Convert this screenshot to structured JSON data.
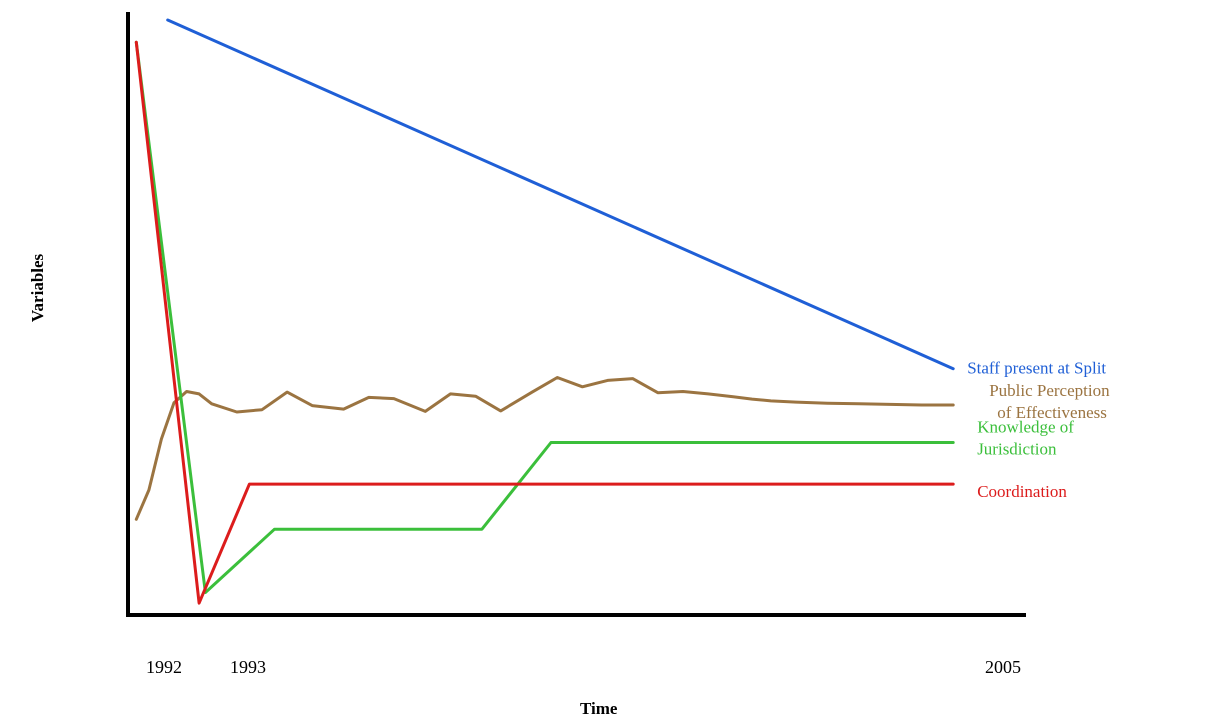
{
  "chart_data": {
    "type": "line",
    "xlabel": "Time",
    "ylabel": "Variables",
    "x_ticks": [
      "1992",
      "1993",
      "2005"
    ],
    "xlim": [
      1991.9,
      2006
    ],
    "ylim": [
      0,
      100
    ],
    "y_tick_labels": false,
    "grid": false,
    "legend": "inline labels at right end of each line",
    "series": [
      {
        "name": "Staff present at Split",
        "color": "#1f5fd6",
        "label_lines": [
          "Staff present at Split"
        ],
        "points": [
          [
            1992.5,
            100
          ],
          [
            2005,
            40.5
          ]
        ]
      },
      {
        "name": "Public Perception of Effectiveness",
        "color": "#9b7441",
        "label_lines": [
          "Public Perception",
          "of Effectiveness"
        ],
        "points": [
          [
            1992,
            14.8
          ],
          [
            1992.2,
            19.8
          ],
          [
            1992.4,
            28.5
          ],
          [
            1992.6,
            34.7
          ],
          [
            1992.8,
            36.6
          ],
          [
            1993.0,
            36.2
          ],
          [
            1993.2,
            34.5
          ],
          [
            1993.6,
            33.1
          ],
          [
            1994.0,
            33.5
          ],
          [
            1994.4,
            36.5
          ],
          [
            1994.8,
            34.2
          ],
          [
            1995.3,
            33.6
          ],
          [
            1995.7,
            35.6
          ],
          [
            1996.1,
            35.4
          ],
          [
            1996.6,
            33.2
          ],
          [
            1997.0,
            36.2
          ],
          [
            1997.4,
            35.8
          ],
          [
            1997.8,
            33.3
          ],
          [
            1998.3,
            36.5
          ],
          [
            1998.7,
            39.0
          ],
          [
            1999.1,
            37.4
          ],
          [
            1999.5,
            38.5
          ],
          [
            1999.9,
            38.8
          ],
          [
            2000.3,
            36.4
          ],
          [
            2000.7,
            36.6
          ],
          [
            2001.1,
            36.2
          ],
          [
            2001.5,
            35.7
          ],
          [
            2001.8,
            35.3
          ],
          [
            2002.1,
            35.0
          ],
          [
            2002.5,
            34.8
          ],
          [
            2003.0,
            34.6
          ],
          [
            2003.5,
            34.5
          ],
          [
            2004.0,
            34.4
          ],
          [
            2004.5,
            34.3
          ],
          [
            2005,
            34.3
          ]
        ]
      },
      {
        "name": "Knowledge of Jurisdiction",
        "color": "#3bbf3b",
        "label_lines": [
          "Knowledge of",
          "Jurisdiction"
        ],
        "points": [
          [
            1992,
            96.2
          ],
          [
            1993.1,
            2.3
          ],
          [
            1994.2,
            13.1
          ],
          [
            1997.5,
            13.1
          ],
          [
            1998.6,
            27.9
          ],
          [
            2005,
            27.9
          ]
        ]
      },
      {
        "name": "Coordination",
        "color": "#dc1c1c",
        "label_lines": [
          "Coordination"
        ],
        "points": [
          [
            1992,
            96.2
          ],
          [
            1993.0,
            0.5
          ],
          [
            1993.8,
            20.8
          ],
          [
            2005,
            20.8
          ]
        ]
      }
    ]
  }
}
